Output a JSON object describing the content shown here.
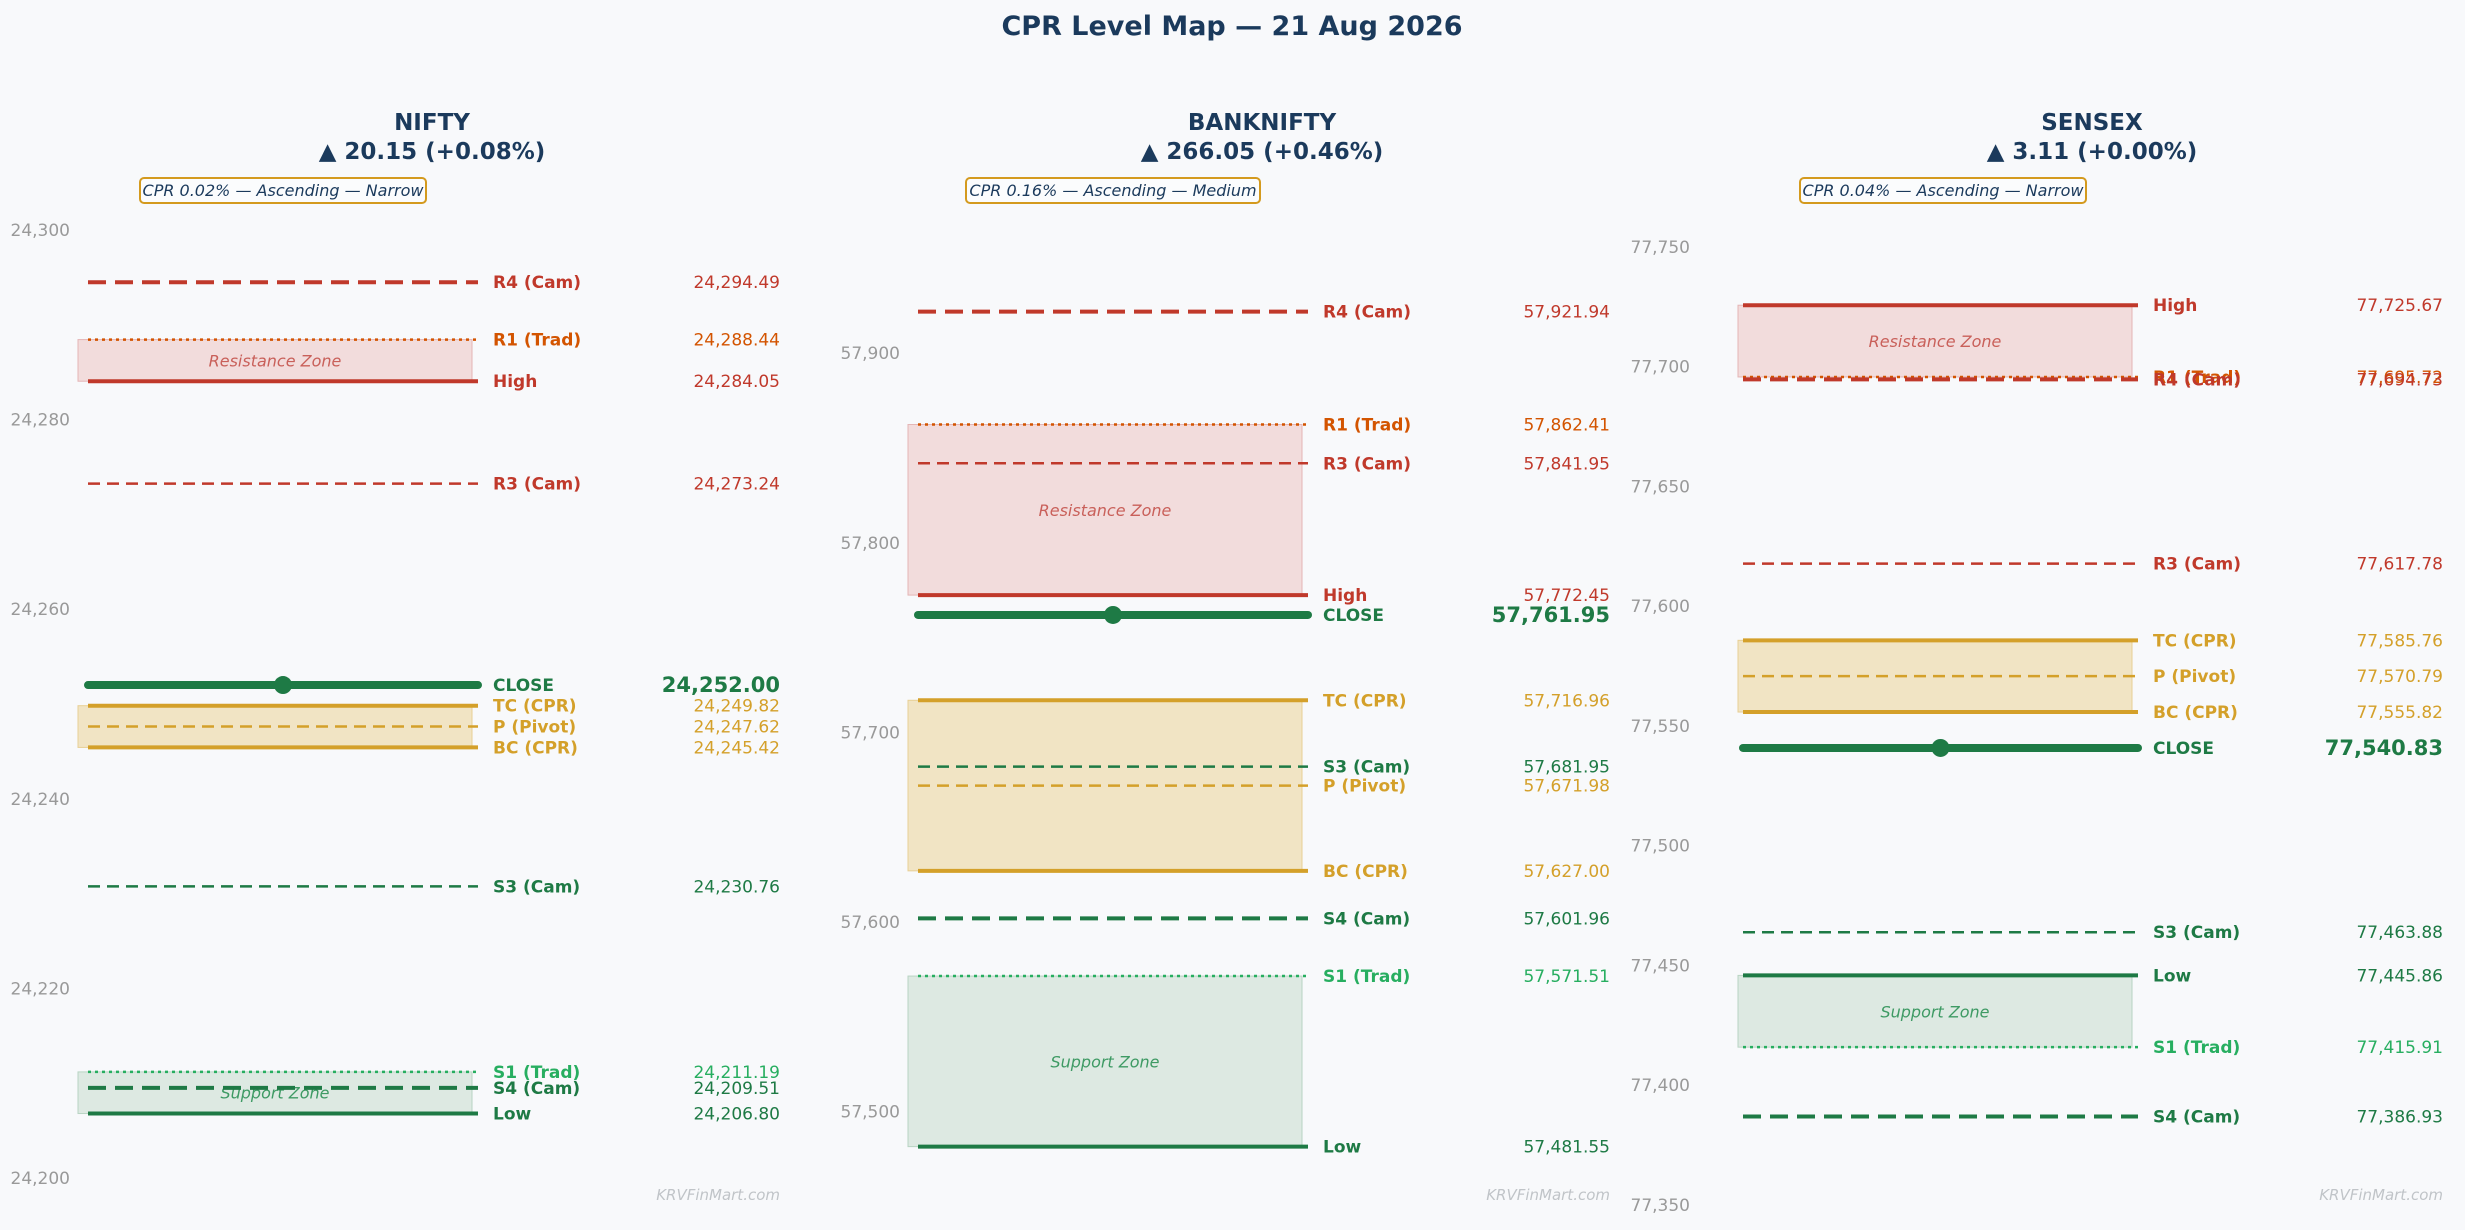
{
  "colors": {
    "background": "#f8f9fb",
    "title": "#1b3a5c",
    "resistance": "#c0392b",
    "trad_resistance": "#d35400",
    "cpr": "#d4a02a",
    "support": "#1e7a45",
    "trad_support": "#27ae60",
    "close": "#1e7a45",
    "badge_border": "#d49a1e",
    "resistance_zone": "#f2dcdc",
    "cpr_zone": "#f1e4c4",
    "support_zone": "#dde9e2"
  },
  "chart_data": {
    "type": "level-map",
    "title": "CPR Level Map — 21 Aug 2026",
    "watermark": "KRVFinMart.com",
    "panels": [
      {
        "name": "NIFTY",
        "change": "▲ 20.15 (+0.08%)",
        "badge": "CPR 0.02% — Ascending — Narrow",
        "ylim": [
          24200,
          24300
        ],
        "ticks": [
          24200,
          24220,
          24240,
          24260,
          24280,
          24300
        ],
        "tick_labels": [
          "24,200",
          "24,220",
          "24,240",
          "24,260",
          "24,280",
          "24,300"
        ],
        "zones": [
          {
            "kind": "resistance",
            "label": "Resistance Zone",
            "from": 24284.05,
            "to": 24288.44
          },
          {
            "kind": "cpr",
            "label": "",
            "from": 24245.42,
            "to": 24249.82
          },
          {
            "kind": "support",
            "label": "Support Zone",
            "from": 24206.8,
            "to": 24211.19
          }
        ],
        "levels": [
          {
            "name": "R4 (Cam)",
            "value": 24294.49,
            "value_label": "24,294.49",
            "style": "dashed",
            "kind": "resistance",
            "weight": "heavy"
          },
          {
            "name": "R1 (Trad)",
            "value": 24288.44,
            "value_label": "24,288.44",
            "style": "dotted",
            "kind": "trad_resistance",
            "weight": "normal"
          },
          {
            "name": "High",
            "value": 24284.05,
            "value_label": "24,284.05",
            "style": "solid",
            "kind": "resistance",
            "weight": "heavy"
          },
          {
            "name": "R3 (Cam)",
            "value": 24273.24,
            "value_label": "24,273.24",
            "style": "dashed",
            "kind": "resistance",
            "weight": "normal"
          },
          {
            "name": "CLOSE",
            "value": 24252.0,
            "value_label": "24,252.00",
            "style": "solid",
            "kind": "close",
            "weight": "close"
          },
          {
            "name": "TC (CPR)",
            "value": 24249.82,
            "value_label": "24,249.82",
            "style": "solid",
            "kind": "cpr",
            "weight": "heavy"
          },
          {
            "name": "P (Pivot)",
            "value": 24247.62,
            "value_label": "24,247.62",
            "style": "dashed",
            "kind": "cpr",
            "weight": "normal"
          },
          {
            "name": "BC (CPR)",
            "value": 24245.42,
            "value_label": "24,245.42",
            "style": "solid",
            "kind": "cpr",
            "weight": "heavy"
          },
          {
            "name": "S3 (Cam)",
            "value": 24230.76,
            "value_label": "24,230.76",
            "style": "dashed",
            "kind": "support",
            "weight": "normal"
          },
          {
            "name": "S1 (Trad)",
            "value": 24211.19,
            "value_label": "24,211.19",
            "style": "dotted",
            "kind": "trad_support",
            "weight": "normal"
          },
          {
            "name": "S4 (Cam)",
            "value": 24209.51,
            "value_label": "24,209.51",
            "style": "dashed",
            "kind": "support",
            "weight": "heavy"
          },
          {
            "name": "Low",
            "value": 24206.8,
            "value_label": "24,206.80",
            "style": "solid",
            "kind": "support",
            "weight": "heavy"
          }
        ]
      },
      {
        "name": "BANKNIFTY",
        "change": "▲ 266.05 (+0.46%)",
        "badge": "CPR 0.16% — Ascending — Medium",
        "ylim": [
          57465,
          57965
        ],
        "ticks": [
          57500,
          57600,
          57700,
          57800,
          57900
        ],
        "tick_labels": [
          "57,500",
          "57,600",
          "57,700",
          "57,800",
          "57,900"
        ],
        "zones": [
          {
            "kind": "resistance",
            "label": "Resistance Zone",
            "from": 57772.45,
            "to": 57862.41
          },
          {
            "kind": "cpr",
            "label": "",
            "from": 57627.0,
            "to": 57716.96
          },
          {
            "kind": "support",
            "label": "Support Zone",
            "from": 57481.55,
            "to": 57571.51
          }
        ],
        "levels": [
          {
            "name": "R4 (Cam)",
            "value": 57921.94,
            "value_label": "57,921.94",
            "style": "dashed",
            "kind": "resistance",
            "weight": "heavy"
          },
          {
            "name": "R1 (Trad)",
            "value": 57862.41,
            "value_label": "57,862.41",
            "style": "dotted",
            "kind": "trad_resistance",
            "weight": "normal"
          },
          {
            "name": "R3 (Cam)",
            "value": 57841.95,
            "value_label": "57,841.95",
            "style": "dashed",
            "kind": "resistance",
            "weight": "normal"
          },
          {
            "name": "High",
            "value": 57772.45,
            "value_label": "57,772.45",
            "style": "solid",
            "kind": "resistance",
            "weight": "heavy"
          },
          {
            "name": "CLOSE",
            "value": 57761.95,
            "value_label": "57,761.95",
            "style": "solid",
            "kind": "close",
            "weight": "close"
          },
          {
            "name": "TC (CPR)",
            "value": 57716.96,
            "value_label": "57,716.96",
            "style": "solid",
            "kind": "cpr",
            "weight": "heavy"
          },
          {
            "name": "S3 (Cam)",
            "value": 57681.95,
            "value_label": "57,681.95",
            "style": "dashed",
            "kind": "support",
            "weight": "normal"
          },
          {
            "name": "P (Pivot)",
            "value": 57671.98,
            "value_label": "57,671.98",
            "style": "dashed",
            "kind": "cpr",
            "weight": "normal"
          },
          {
            "name": "BC (CPR)",
            "value": 57627.0,
            "value_label": "57,627.00",
            "style": "solid",
            "kind": "cpr",
            "weight": "heavy"
          },
          {
            "name": "S4 (Cam)",
            "value": 57601.96,
            "value_label": "57,601.96",
            "style": "dashed",
            "kind": "support",
            "weight": "heavy"
          },
          {
            "name": "S1 (Trad)",
            "value": 57571.51,
            "value_label": "57,571.51",
            "style": "dotted",
            "kind": "trad_support",
            "weight": "normal"
          },
          {
            "name": "Low",
            "value": 57481.55,
            "value_label": "57,481.55",
            "style": "solid",
            "kind": "support",
            "weight": "heavy"
          }
        ]
      },
      {
        "name": "SENSEX",
        "change": "▲ 3.11 (+0.00%)",
        "badge": "CPR 0.04% — Ascending — Narrow",
        "ylim": [
          77350,
          77760
        ],
        "ticks": [
          77350,
          77400,
          77450,
          77500,
          77550,
          77600,
          77650,
          77700,
          77750
        ],
        "tick_labels": [
          "77,350",
          "77,400",
          "77,450",
          "77,500",
          "77,550",
          "77,600",
          "77,650",
          "77,700",
          "77,750"
        ],
        "zones": [
          {
            "kind": "resistance",
            "label": "Resistance Zone",
            "from": 77695.72,
            "to": 77725.67
          },
          {
            "kind": "cpr",
            "label": "",
            "from": 77555.82,
            "to": 77585.76
          },
          {
            "kind": "support",
            "label": "Support Zone",
            "from": 77415.91,
            "to": 77445.86
          }
        ],
        "levels": [
          {
            "name": "High",
            "value": 77725.67,
            "value_label": "77,725.67",
            "style": "solid",
            "kind": "resistance",
            "weight": "heavy"
          },
          {
            "name": "R1 (Trad)",
            "value": 77695.72,
            "value_label": "77,695.72",
            "style": "dotted",
            "kind": "trad_resistance",
            "weight": "normal"
          },
          {
            "name": "R4 (Cam)",
            "value": 77694.73,
            "value_label": "77,694.73",
            "style": "dashed",
            "kind": "resistance",
            "weight": "heavy"
          },
          {
            "name": "R3 (Cam)",
            "value": 77617.78,
            "value_label": "77,617.78",
            "style": "dashed",
            "kind": "resistance",
            "weight": "normal"
          },
          {
            "name": "TC (CPR)",
            "value": 77585.76,
            "value_label": "77,585.76",
            "style": "solid",
            "kind": "cpr",
            "weight": "heavy"
          },
          {
            "name": "P (Pivot)",
            "value": 77570.79,
            "value_label": "77,570.79",
            "style": "dashed",
            "kind": "cpr",
            "weight": "normal"
          },
          {
            "name": "BC (CPR)",
            "value": 77555.82,
            "value_label": "77,555.82",
            "style": "solid",
            "kind": "cpr",
            "weight": "heavy"
          },
          {
            "name": "CLOSE",
            "value": 77540.83,
            "value_label": "77,540.83",
            "style": "solid",
            "kind": "close",
            "weight": "close"
          },
          {
            "name": "S3 (Cam)",
            "value": 77463.88,
            "value_label": "77,463.88",
            "style": "dashed",
            "kind": "support",
            "weight": "normal"
          },
          {
            "name": "Low",
            "value": 77445.86,
            "value_label": "77,445.86",
            "style": "solid",
            "kind": "support",
            "weight": "heavy"
          },
          {
            "name": "S1 (Trad)",
            "value": 77415.91,
            "value_label": "77,415.91",
            "style": "dotted",
            "kind": "trad_support",
            "weight": "normal"
          },
          {
            "name": "S4 (Cam)",
            "value": 77386.93,
            "value_label": "77,386.93",
            "style": "dashed",
            "kind": "support",
            "weight": "heavy"
          }
        ]
      }
    ]
  }
}
